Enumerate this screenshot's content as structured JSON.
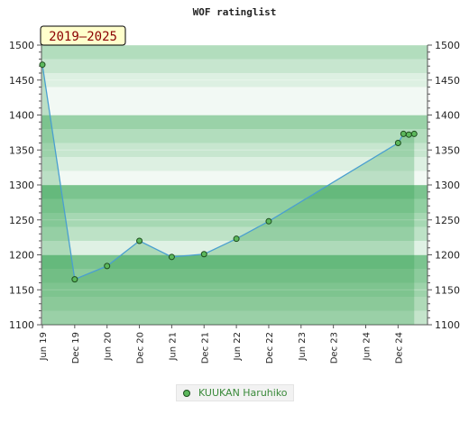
{
  "chart_data": {
    "type": "line",
    "title": "WOF ratinglist",
    "period_badge": "2019–2025",
    "xlabel": "",
    "ylabel": "",
    "ylim": [
      1100,
      1500
    ],
    "y_ticks": [
      1100,
      1150,
      1200,
      1250,
      1300,
      1350,
      1400,
      1450,
      1500
    ],
    "x_tick_labels": [
      "Jun 19",
      "Dec 19",
      "Jun 20",
      "Dec 20",
      "Jun 21",
      "Dec 21",
      "Jun 22",
      "Dec 22",
      "Jun 23",
      "Dec 23",
      "Jun 24",
      "Dec 24"
    ],
    "grid": true,
    "legend_position": "bottom-center",
    "series": [
      {
        "name": "KUUKAN Haruhiko",
        "color": "#5cb85c",
        "x": [
          "2019-06",
          "2019-12",
          "2020-06",
          "2020-12",
          "2021-06",
          "2021-12",
          "2022-06",
          "2022-12",
          "2024-12",
          "2025-01",
          "2025-02",
          "2025-03"
        ],
        "values": [
          1472,
          1165,
          1184,
          1220,
          1197,
          1201,
          1223,
          1248,
          1360,
          1373,
          1372,
          1373
        ]
      }
    ]
  }
}
